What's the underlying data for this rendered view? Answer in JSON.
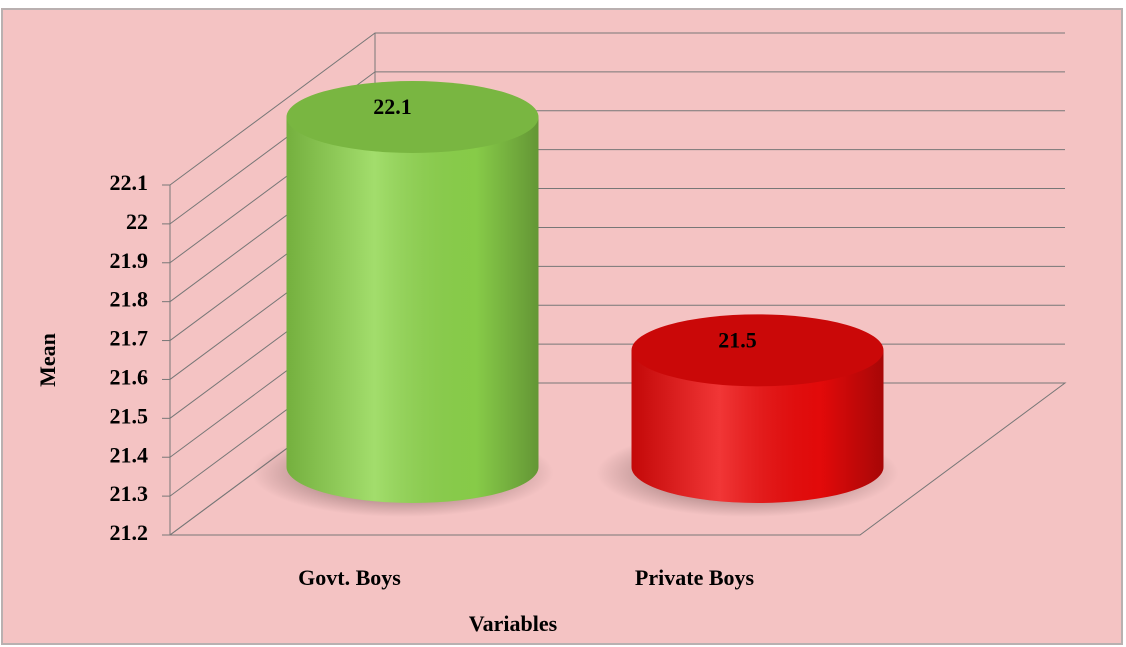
{
  "chart_data": {
    "type": "cylinder",
    "x_label": "Variables",
    "y_label": "Mean",
    "categories": [
      "Govt. Boys",
      "Private Boys"
    ],
    "values": [
      22.1,
      21.5
    ],
    "colors": [
      "#8ed64c",
      "#ee0a0a"
    ],
    "ylim": [
      21.2,
      22.1
    ],
    "yticks": [
      21.2,
      21.3,
      21.4,
      21.5,
      21.6,
      21.7,
      21.8,
      21.9,
      22,
      22.1
    ],
    "grid": true
  }
}
